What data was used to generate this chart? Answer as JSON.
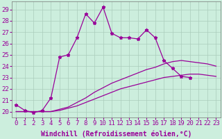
{
  "xlabel": "Windchill (Refroidissement éolien,°C)",
  "xlim": [
    -0.5,
    23.5
  ],
  "ylim": [
    19.5,
    29.7
  ],
  "yticks": [
    20,
    21,
    22,
    23,
    24,
    25,
    26,
    27,
    28,
    29
  ],
  "xticks": [
    0,
    1,
    2,
    3,
    4,
    5,
    6,
    7,
    8,
    9,
    10,
    11,
    12,
    13,
    14,
    15,
    16,
    17,
    18,
    19,
    20,
    21,
    22,
    23
  ],
  "bg_color": "#cceedd",
  "grid_color": "#aaccbb",
  "line_color": "#990099",
  "curve1_x": [
    0,
    1,
    2,
    3,
    4,
    5,
    6,
    7,
    8,
    9,
    10,
    11,
    12,
    13,
    14,
    15,
    16,
    17,
    18,
    19,
    20
  ],
  "curve1_y": [
    20.6,
    20.1,
    19.9,
    20.1,
    21.2,
    24.8,
    25.0,
    26.5,
    28.6,
    27.8,
    29.2,
    26.9,
    26.5,
    26.5,
    26.4,
    27.2,
    26.5,
    24.5,
    23.8,
    23.1,
    23.0
  ],
  "curve2_x": [
    0,
    1,
    2,
    3,
    4,
    5,
    6,
    7,
    8,
    9,
    10,
    11,
    12,
    13,
    14,
    15,
    16,
    17,
    18,
    19,
    20
  ],
  "curve2_y": [
    20.6,
    20.1,
    19.9,
    20.1,
    21.2,
    24.8,
    25.0,
    26.5,
    28.6,
    27.8,
    29.2,
    26.9,
    26.5,
    26.5,
    26.4,
    27.2,
    26.5,
    24.5,
    23.8,
    23.1,
    23.0
  ],
  "curve3_x": [
    0,
    1,
    2,
    3,
    4,
    5,
    6,
    7,
    8,
    9,
    10,
    11,
    12,
    13,
    14,
    15,
    16,
    17,
    18,
    19,
    20,
    21,
    22,
    23
  ],
  "curve3_y": [
    20.0,
    20.0,
    20.0,
    20.0,
    20.0,
    20.2,
    20.4,
    20.8,
    21.2,
    21.7,
    22.1,
    22.5,
    22.8,
    23.1,
    23.4,
    23.7,
    23.9,
    24.2,
    24.4,
    24.5,
    24.4,
    24.3,
    24.2,
    24.0
  ],
  "curve4_x": [
    0,
    1,
    2,
    3,
    4,
    5,
    6,
    7,
    8,
    9,
    10,
    11,
    12,
    13,
    14,
    15,
    16,
    17,
    18,
    19,
    20,
    21,
    22,
    23
  ],
  "curve4_y": [
    20.0,
    20.0,
    20.0,
    20.0,
    20.0,
    20.1,
    20.3,
    20.5,
    20.8,
    21.1,
    21.4,
    21.7,
    22.0,
    22.2,
    22.4,
    22.6,
    22.8,
    23.0,
    23.1,
    23.2,
    23.3,
    23.3,
    23.2,
    23.1
  ],
  "font_family": "monospace",
  "font_size_xlabel": 7,
  "font_size_tick": 6.5
}
